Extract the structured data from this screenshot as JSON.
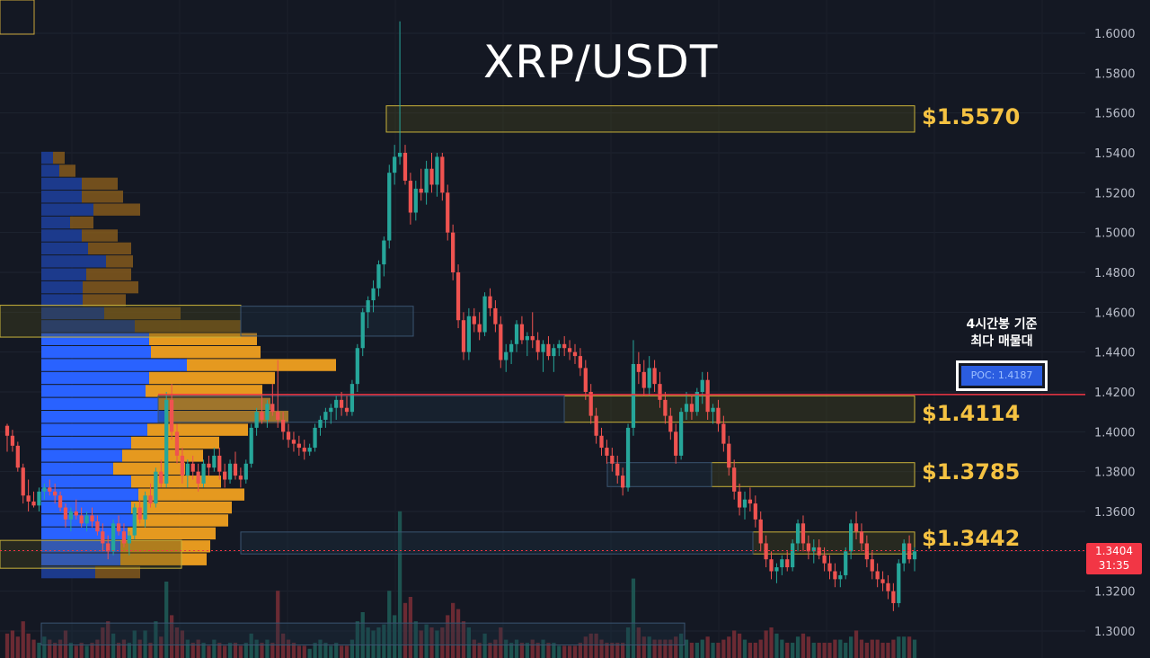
{
  "chart_data": {
    "type": "candlestick",
    "title": "XRP/USDT",
    "y_axis": {
      "ticks": [
        "1.6000",
        "1.5800",
        "1.5600",
        "1.5400",
        "1.5200",
        "1.5000",
        "1.4800",
        "1.4600",
        "1.4400",
        "1.4200",
        "1.4000",
        "1.3800",
        "1.3600",
        "1.3400",
        "1.3200",
        "1.3000"
      ],
      "ylim": [
        1.2936,
        1.6168
      ]
    },
    "levels": [
      {
        "name": "level-1-5570",
        "label": "$1.5570",
        "price": 1.557
      },
      {
        "name": "level-1-4114",
        "label": "$1.4114",
        "price": 1.4114
      },
      {
        "name": "level-1-3785",
        "label": "$1.3785",
        "price": 1.3785
      },
      {
        "name": "level-1-3442",
        "label": "$1.3442",
        "price": 1.3442
      }
    ],
    "poc": {
      "note_line1": "4시간봉 기준",
      "note_line2": "최다 매물대",
      "label": "POC: 1.4187",
      "price": 1.4187,
      "color": "#f23645"
    },
    "current_price": {
      "value": "1.3404",
      "countdown": "31:35",
      "price": 1.3404
    },
    "colors": {
      "up": "#26a69a",
      "down": "#ef5350",
      "level": "#f5c242",
      "profile_buy": "#2962ff",
      "profile_sell": "#f0a020",
      "background": "#141823"
    },
    "candles": [
      [
        1.403,
        1.404,
        1.39,
        1.398
      ],
      [
        1.398,
        1.401,
        1.39,
        1.393
      ],
      [
        1.393,
        1.395,
        1.38,
        1.382
      ],
      [
        1.382,
        1.384,
        1.364,
        1.368
      ],
      [
        1.368,
        1.376,
        1.36,
        1.365
      ],
      [
        1.365,
        1.37,
        1.362,
        1.363
      ],
      [
        1.363,
        1.372,
        1.36,
        1.37
      ],
      [
        1.37,
        1.374,
        1.366,
        1.372
      ],
      [
        1.372,
        1.376,
        1.368,
        1.37
      ],
      [
        1.37,
        1.374,
        1.364,
        1.368
      ],
      [
        1.368,
        1.37,
        1.36,
        1.362
      ],
      [
        1.362,
        1.364,
        1.352,
        1.356
      ],
      [
        1.356,
        1.362,
        1.35,
        1.36
      ],
      [
        1.36,
        1.366,
        1.356,
        1.358
      ],
      [
        1.358,
        1.362,
        1.352,
        1.354
      ],
      [
        1.354,
        1.36,
        1.35,
        1.358
      ],
      [
        1.358,
        1.362,
        1.352,
        1.355
      ],
      [
        1.355,
        1.358,
        1.348,
        1.35
      ],
      [
        1.35,
        1.354,
        1.34,
        1.344
      ],
      [
        1.344,
        1.348,
        1.336,
        1.34
      ],
      [
        1.34,
        1.356,
        1.338,
        1.354
      ],
      [
        1.354,
        1.358,
        1.348,
        1.35
      ],
      [
        1.35,
        1.354,
        1.342,
        1.344
      ],
      [
        1.344,
        1.35,
        1.338,
        1.348
      ],
      [
        1.348,
        1.364,
        1.346,
        1.362
      ],
      [
        1.362,
        1.366,
        1.354,
        1.356
      ],
      [
        1.356,
        1.37,
        1.352,
        1.368
      ],
      [
        1.368,
        1.374,
        1.362,
        1.364
      ],
      [
        1.364,
        1.382,
        1.362,
        1.38
      ],
      [
        1.38,
        1.386,
        1.372,
        1.374
      ],
      [
        1.374,
        1.42,
        1.372,
        1.416
      ],
      [
        1.416,
        1.424,
        1.396,
        1.4
      ],
      [
        1.4,
        1.404,
        1.384,
        1.388
      ],
      [
        1.388,
        1.392,
        1.374,
        1.378
      ],
      [
        1.378,
        1.386,
        1.372,
        1.384
      ],
      [
        1.384,
        1.388,
        1.376,
        1.38
      ],
      [
        1.38,
        1.384,
        1.37,
        1.374
      ],
      [
        1.374,
        1.386,
        1.372,
        1.384
      ],
      [
        1.384,
        1.388,
        1.378,
        1.382
      ],
      [
        1.382,
        1.392,
        1.38,
        1.388
      ],
      [
        1.388,
        1.392,
        1.376,
        1.38
      ],
      [
        1.38,
        1.384,
        1.372,
        1.376
      ],
      [
        1.376,
        1.386,
        1.374,
        1.384
      ],
      [
        1.384,
        1.39,
        1.376,
        1.378
      ],
      [
        1.378,
        1.382,
        1.372,
        1.376
      ],
      [
        1.376,
        1.386,
        1.374,
        1.384
      ],
      [
        1.384,
        1.404,
        1.382,
        1.402
      ],
      [
        1.402,
        1.412,
        1.398,
        1.41
      ],
      [
        1.41,
        1.418,
        1.404,
        1.406
      ],
      [
        1.406,
        1.416,
        1.402,
        1.414
      ],
      [
        1.414,
        1.424,
        1.408,
        1.41
      ],
      [
        1.41,
        1.436,
        1.402,
        1.406
      ],
      [
        1.406,
        1.41,
        1.396,
        1.4
      ],
      [
        1.4,
        1.404,
        1.392,
        1.396
      ],
      [
        1.396,
        1.4,
        1.39,
        1.394
      ],
      [
        1.394,
        1.398,
        1.388,
        1.392
      ],
      [
        1.392,
        1.396,
        1.386,
        1.39
      ],
      [
        1.39,
        1.394,
        1.388,
        1.392
      ],
      [
        1.392,
        1.404,
        1.39,
        1.402
      ],
      [
        1.402,
        1.408,
        1.398,
        1.406
      ],
      [
        1.406,
        1.412,
        1.402,
        1.41
      ],
      [
        1.41,
        1.414,
        1.404,
        1.412
      ],
      [
        1.412,
        1.418,
        1.406,
        1.416
      ],
      [
        1.416,
        1.42,
        1.408,
        1.412
      ],
      [
        1.412,
        1.418,
        1.408,
        1.41
      ],
      [
        1.41,
        1.426,
        1.408,
        1.424
      ],
      [
        1.424,
        1.444,
        1.42,
        1.442
      ],
      [
        1.442,
        1.462,
        1.438,
        1.46
      ],
      [
        1.46,
        1.468,
        1.452,
        1.466
      ],
      [
        1.466,
        1.476,
        1.46,
        1.472
      ],
      [
        1.472,
        1.486,
        1.468,
        1.484
      ],
      [
        1.484,
        1.498,
        1.478,
        1.496
      ],
      [
        1.496,
        1.534,
        1.492,
        1.53
      ],
      [
        1.53,
        1.544,
        1.524,
        1.538
      ],
      [
        1.538,
        1.606,
        1.534,
        1.54
      ],
      [
        1.54,
        1.544,
        1.524,
        1.526
      ],
      [
        1.526,
        1.53,
        1.504,
        1.51
      ],
      [
        1.51,
        1.526,
        1.506,
        1.522
      ],
      [
        1.522,
        1.532,
        1.516,
        1.52
      ],
      [
        1.52,
        1.536,
        1.514,
        1.532
      ],
      [
        1.532,
        1.54,
        1.52,
        1.524
      ],
      [
        1.524,
        1.54,
        1.518,
        1.538
      ],
      [
        1.538,
        1.54,
        1.516,
        1.52
      ],
      [
        1.52,
        1.524,
        1.496,
        1.5
      ],
      [
        1.5,
        1.504,
        1.476,
        1.48
      ],
      [
        1.48,
        1.484,
        1.452,
        1.456
      ],
      [
        1.456,
        1.46,
        1.436,
        1.44
      ],
      [
        1.44,
        1.462,
        1.436,
        1.458
      ],
      [
        1.458,
        1.462,
        1.45,
        1.454
      ],
      [
        1.454,
        1.46,
        1.446,
        1.45
      ],
      [
        1.45,
        1.47,
        1.448,
        1.468
      ],
      [
        1.468,
        1.472,
        1.458,
        1.462
      ],
      [
        1.462,
        1.466,
        1.45,
        1.454
      ],
      [
        1.454,
        1.458,
        1.432,
        1.436
      ],
      [
        1.436,
        1.444,
        1.43,
        1.44
      ],
      [
        1.44,
        1.446,
        1.434,
        1.444
      ],
      [
        1.444,
        1.456,
        1.44,
        1.454
      ],
      [
        1.454,
        1.458,
        1.444,
        1.446
      ],
      [
        1.446,
        1.45,
        1.438,
        1.448
      ],
      [
        1.448,
        1.46,
        1.442,
        1.446
      ],
      [
        1.446,
        1.45,
        1.436,
        1.44
      ],
      [
        1.44,
        1.446,
        1.43,
        1.444
      ],
      [
        1.444,
        1.448,
        1.436,
        1.438
      ],
      [
        1.438,
        1.444,
        1.43,
        1.442
      ],
      [
        1.442,
        1.446,
        1.438,
        1.444
      ],
      [
        1.444,
        1.448,
        1.438,
        1.442
      ],
      [
        1.442,
        1.446,
        1.436,
        1.44
      ],
      [
        1.44,
        1.444,
        1.434,
        1.438
      ],
      [
        1.438,
        1.442,
        1.428,
        1.432
      ],
      [
        1.432,
        1.436,
        1.416,
        1.42
      ],
      [
        1.42,
        1.424,
        1.404,
        1.408
      ],
      [
        1.408,
        1.412,
        1.394,
        1.398
      ],
      [
        1.398,
        1.402,
        1.388,
        1.392
      ],
      [
        1.392,
        1.396,
        1.384,
        1.388
      ],
      [
        1.388,
        1.392,
        1.38,
        1.384
      ],
      [
        1.384,
        1.388,
        1.374,
        1.378
      ],
      [
        1.378,
        1.382,
        1.368,
        1.372
      ],
      [
        1.372,
        1.404,
        1.37,
        1.402
      ],
      [
        1.402,
        1.446,
        1.398,
        1.434
      ],
      [
        1.434,
        1.44,
        1.424,
        1.43
      ],
      [
        1.43,
        1.436,
        1.418,
        1.422
      ],
      [
        1.422,
        1.438,
        1.418,
        1.432
      ],
      [
        1.432,
        1.436,
        1.42,
        1.424
      ],
      [
        1.424,
        1.43,
        1.412,
        1.416
      ],
      [
        1.416,
        1.42,
        1.404,
        1.408
      ],
      [
        1.408,
        1.412,
        1.396,
        1.4
      ],
      [
        1.4,
        1.404,
        1.384,
        1.388
      ],
      [
        1.388,
        1.412,
        1.386,
        1.41
      ],
      [
        1.41,
        1.42,
        1.406,
        1.414
      ],
      [
        1.414,
        1.418,
        1.406,
        1.41
      ],
      [
        1.41,
        1.422,
        1.408,
        1.42
      ],
      [
        1.42,
        1.43,
        1.414,
        1.426
      ],
      [
        1.426,
        1.43,
        1.406,
        1.41
      ],
      [
        1.41,
        1.414,
        1.404,
        1.412
      ],
      [
        1.412,
        1.416,
        1.4,
        1.404
      ],
      [
        1.404,
        1.408,
        1.39,
        1.394
      ],
      [
        1.394,
        1.398,
        1.378,
        1.382
      ],
      [
        1.382,
        1.386,
        1.366,
        1.37
      ],
      [
        1.37,
        1.374,
        1.358,
        1.362
      ],
      [
        1.362,
        1.37,
        1.356,
        1.366
      ],
      [
        1.366,
        1.372,
        1.36,
        1.364
      ],
      [
        1.364,
        1.368,
        1.352,
        1.356
      ],
      [
        1.356,
        1.36,
        1.34,
        1.344
      ],
      [
        1.344,
        1.348,
        1.332,
        1.336
      ],
      [
        1.336,
        1.34,
        1.326,
        1.33
      ],
      [
        1.33,
        1.334,
        1.324,
        1.332
      ],
      [
        1.332,
        1.338,
        1.328,
        1.336
      ],
      [
        1.336,
        1.34,
        1.33,
        1.332
      ],
      [
        1.332,
        1.346,
        1.33,
        1.344
      ],
      [
        1.344,
        1.356,
        1.34,
        1.354
      ],
      [
        1.354,
        1.358,
        1.34,
        1.344
      ],
      [
        1.344,
        1.348,
        1.336,
        1.34
      ],
      [
        1.34,
        1.346,
        1.334,
        1.342
      ],
      [
        1.342,
        1.346,
        1.336,
        1.338
      ],
      [
        1.338,
        1.342,
        1.33,
        1.334
      ],
      [
        1.334,
        1.338,
        1.326,
        1.33
      ],
      [
        1.33,
        1.334,
        1.322,
        1.326
      ],
      [
        1.326,
        1.33,
        1.322,
        1.328
      ],
      [
        1.328,
        1.342,
        1.326,
        1.34
      ],
      [
        1.34,
        1.356,
        1.336,
        1.354
      ],
      [
        1.354,
        1.36,
        1.346,
        1.35
      ],
      [
        1.35,
        1.354,
        1.34,
        1.344
      ],
      [
        1.344,
        1.348,
        1.332,
        1.336
      ],
      [
        1.336,
        1.34,
        1.326,
        1.33
      ],
      [
        1.33,
        1.334,
        1.322,
        1.326
      ],
      [
        1.326,
        1.33,
        1.32,
        1.324
      ],
      [
        1.324,
        1.328,
        1.316,
        1.32
      ],
      [
        1.32,
        1.324,
        1.31,
        1.314
      ],
      [
        1.314,
        1.336,
        1.312,
        1.334
      ],
      [
        1.334,
        1.346,
        1.33,
        1.344
      ],
      [
        1.344,
        1.348,
        1.334,
        1.336
      ],
      [
        1.336,
        1.342,
        1.33,
        1.34
      ]
    ],
    "volumes": [
      0.08,
      0.09,
      0.07,
      0.12,
      0.08,
      0.06,
      0.05,
      0.07,
      0.06,
      0.05,
      0.06,
      0.09,
      0.05,
      0.04,
      0.05,
      0.04,
      0.05,
      0.06,
      0.1,
      0.12,
      0.08,
      0.05,
      0.06,
      0.05,
      0.09,
      0.06,
      0.09,
      0.05,
      0.12,
      0.07,
      0.25,
      0.14,
      0.1,
      0.09,
      0.06,
      0.05,
      0.06,
      0.05,
      0.04,
      0.06,
      0.05,
      0.04,
      0.05,
      0.05,
      0.04,
      0.05,
      0.08,
      0.06,
      0.05,
      0.06,
      0.05,
      0.22,
      0.08,
      0.06,
      0.05,
      0.04,
      0.04,
      0.03,
      0.05,
      0.06,
      0.05,
      0.04,
      0.05,
      0.04,
      0.04,
      0.06,
      0.12,
      0.15,
      0.1,
      0.09,
      0.1,
      0.11,
      0.22,
      0.14,
      0.48,
      0.18,
      0.2,
      0.12,
      0.09,
      0.11,
      0.1,
      0.09,
      0.1,
      0.14,
      0.18,
      0.16,
      0.12,
      0.1,
      0.06,
      0.05,
      0.08,
      0.05,
      0.06,
      0.1,
      0.06,
      0.05,
      0.06,
      0.05,
      0.05,
      0.06,
      0.05,
      0.06,
      0.05,
      0.05,
      0.04,
      0.04,
      0.04,
      0.04,
      0.05,
      0.07,
      0.08,
      0.08,
      0.06,
      0.05,
      0.05,
      0.05,
      0.05,
      0.1,
      0.26,
      0.1,
      0.07,
      0.07,
      0.06,
      0.06,
      0.06,
      0.06,
      0.07,
      0.08,
      0.06,
      0.05,
      0.05,
      0.06,
      0.07,
      0.05,
      0.05,
      0.06,
      0.07,
      0.09,
      0.08,
      0.06,
      0.05,
      0.05,
      0.06,
      0.09,
      0.1,
      0.08,
      0.06,
      0.05,
      0.05,
      0.07,
      0.08,
      0.07,
      0.05,
      0.05,
      0.05,
      0.05,
      0.06,
      0.06,
      0.05,
      0.07,
      0.09,
      0.06,
      0.05,
      0.06,
      0.06,
      0.05,
      0.05,
      0.06,
      0.07,
      0.07,
      0.07,
      0.06,
      0.05
    ]
  }
}
